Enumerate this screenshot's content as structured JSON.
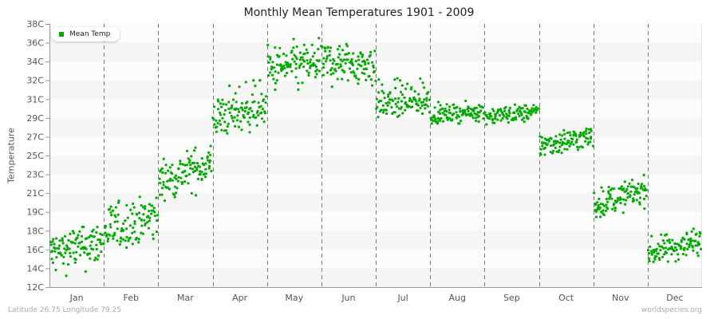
{
  "title": "Monthly Mean Temperatures 1901 - 2009",
  "footer": {
    "location": "Latitude 26.75 Longitude 79.25",
    "source": "worldspecies.org"
  },
  "legend": {
    "label": "Mean Temp",
    "color": "#00aa00"
  },
  "colors": {
    "dot": "#00aa00",
    "band_dark": "#f5f5f5",
    "band_light": "#fcfcfc",
    "grid_dash": "#777777",
    "axis": "#999999"
  },
  "chart_data": {
    "type": "scatter",
    "title": "Monthly Mean Temperatures 1901 - 2009",
    "xlabel": "",
    "ylabel": "Temperature",
    "y_tick_labels": [
      "12C",
      "14C",
      "16C",
      "18C",
      "19C",
      "21C",
      "23C",
      "25C",
      "27C",
      "29C",
      "31C",
      "32C",
      "34C",
      "36C",
      "38C"
    ],
    "ylim": [
      12,
      38
    ],
    "categories": [
      "Jan",
      "Feb",
      "Mar",
      "Apr",
      "May",
      "Jun",
      "Jul",
      "Aug",
      "Sep",
      "Oct",
      "Nov",
      "Dec"
    ],
    "grid": "horizontal alternating bands, vertical dashed month separators",
    "legend_position": "top-left inside plot",
    "series": [
      {
        "name": "Mean Temp",
        "points_per_month": 109,
        "years": [
          1901,
          2009
        ],
        "monthly_distribution": [
          {
            "month": "Jan",
            "start": 15.6,
            "end": 16.8,
            "spread": 1.3,
            "min": 13.2,
            "max": 18.2
          },
          {
            "month": "Feb",
            "start": 17.8,
            "end": 18.8,
            "spread": 1.0,
            "min": 16.0,
            "max": 20.6
          },
          {
            "month": "Mar",
            "start": 22.2,
            "end": 24.2,
            "spread": 1.2,
            "min": 20.2,
            "max": 26.8
          },
          {
            "month": "Apr",
            "start": 29.0,
            "end": 30.4,
            "spread": 1.2,
            "min": 27.0,
            "max": 32.0
          },
          {
            "month": "May",
            "start": 33.2,
            "end": 33.8,
            "spread": 1.3,
            "min": 31.5,
            "max": 36.5
          },
          {
            "month": "Jun",
            "start": 34.0,
            "end": 33.6,
            "spread": 1.2,
            "min": 31.6,
            "max": 36.8
          },
          {
            "month": "Jul",
            "start": 30.4,
            "end": 30.8,
            "spread": 0.8,
            "min": 29.0,
            "max": 33.1
          },
          {
            "month": "Aug",
            "start": 29.3,
            "end": 29.7,
            "spread": 0.5,
            "min": 28.4,
            "max": 30.8
          },
          {
            "month": "Sep",
            "start": 29.2,
            "end": 29.6,
            "spread": 0.5,
            "min": 28.3,
            "max": 30.9
          },
          {
            "month": "Oct",
            "start": 26.1,
            "end": 27.0,
            "spread": 0.7,
            "min": 24.8,
            "max": 29.4
          },
          {
            "month": "Nov",
            "start": 19.8,
            "end": 21.4,
            "spread": 0.8,
            "min": 18.6,
            "max": 23.6
          },
          {
            "month": "Dec",
            "start": 15.6,
            "end": 17.0,
            "spread": 0.8,
            "min": 13.5,
            "max": 18.8
          }
        ]
      }
    ]
  }
}
